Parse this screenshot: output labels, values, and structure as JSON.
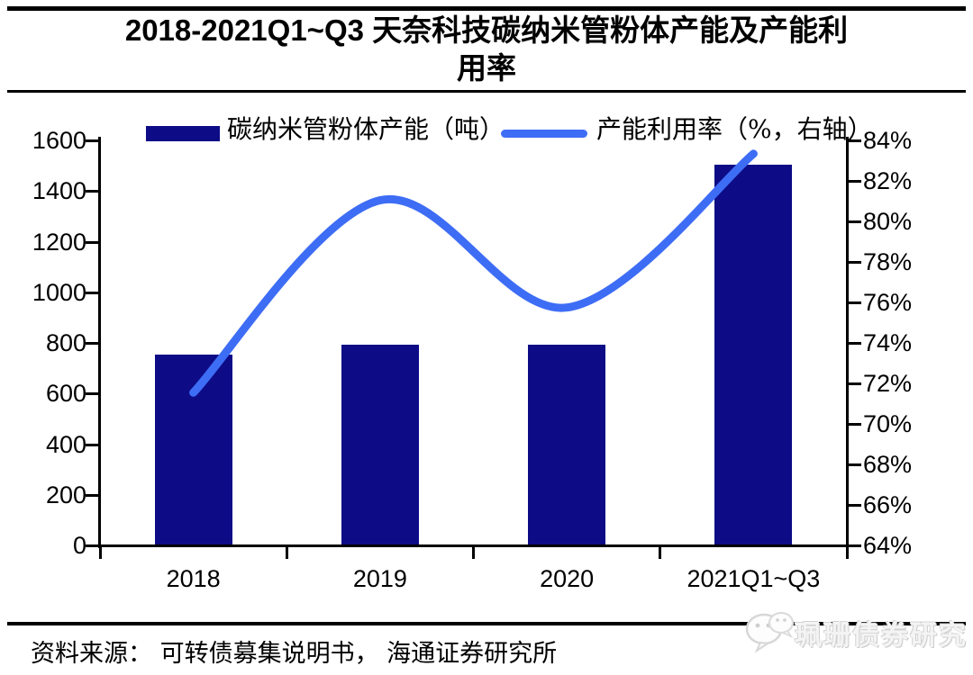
{
  "title": {
    "full": "2018-2021Q1~Q3 天奈科技碳纳米管粉体产能及产能利用率",
    "line1": "2018-2021Q1~Q3 天奈科技碳纳米管粉体产能及产能利",
    "line2": "用率"
  },
  "chart_data": {
    "type": "bar+line combo, dual y-axis",
    "title": "2018-2021Q1~Q3 天奈科技碳纳米管粉体产能及产能利用率",
    "categories": [
      "2018",
      "2019",
      "2020",
      "2021Q1~Q3"
    ],
    "series": [
      {
        "name": "碳纳米管粉体产能（吨）",
        "type": "bar",
        "axis": "left",
        "values": [
          750,
          790,
          790,
          1500
        ],
        "color": "#0d0c86"
      },
      {
        "name": "产能利用率（%，右轴）",
        "type": "line",
        "axis": "right",
        "values": [
          71.5,
          81.0,
          75.7,
          83.3
        ],
        "color": "#3e6df5"
      }
    ],
    "left_axis": {
      "min": 0,
      "max": 1600,
      "step": 200,
      "ticks": [
        "0",
        "200",
        "400",
        "600",
        "800",
        "1000",
        "1200",
        "1400",
        "1600"
      ]
    },
    "right_axis": {
      "min": 64,
      "max": 84,
      "step": 2,
      "suffix": "%",
      "ticks": [
        "64%",
        "66%",
        "68%",
        "70%",
        "72%",
        "74%",
        "76%",
        "78%",
        "80%",
        "82%",
        "84%"
      ]
    },
    "grid": false,
    "legend_position": "top"
  },
  "footer": {
    "source": "资料来源： 可转债募集说明书， 海通证券研究所",
    "watermark": "珮珊债券研究"
  }
}
